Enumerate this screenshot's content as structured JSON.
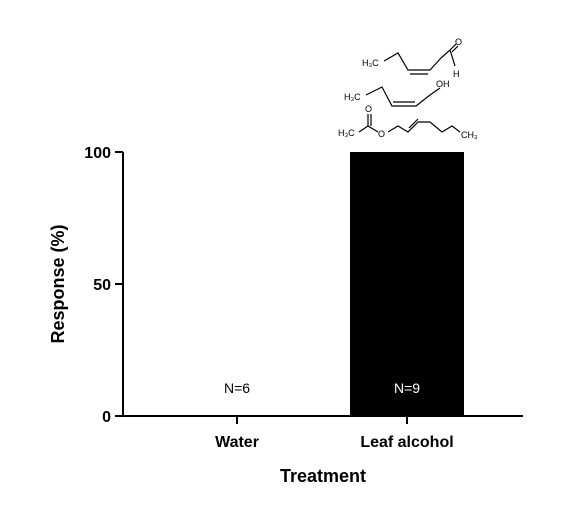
{
  "chart_data": {
    "type": "bar",
    "categories": [
      "Water",
      "Leaf alcohol"
    ],
    "values": [
      0,
      100
    ],
    "ylim": [
      0,
      100
    ],
    "yticks": [
      0,
      50,
      100
    ],
    "xlabel": "Treatment",
    "ylabel": "Response (%)",
    "annotations": [
      "N=6",
      "N=9"
    ],
    "bar_color": "#000000",
    "grid": false
  },
  "structures": {
    "aldehyde": {
      "left": "H₃C",
      "o": "O",
      "h": "H"
    },
    "alcohol": {
      "left": "H₃C",
      "oh": "OH"
    },
    "acetate": {
      "left": "H₃C",
      "o_top": "O",
      "o_chain": "O",
      "right": "CH₃"
    }
  }
}
